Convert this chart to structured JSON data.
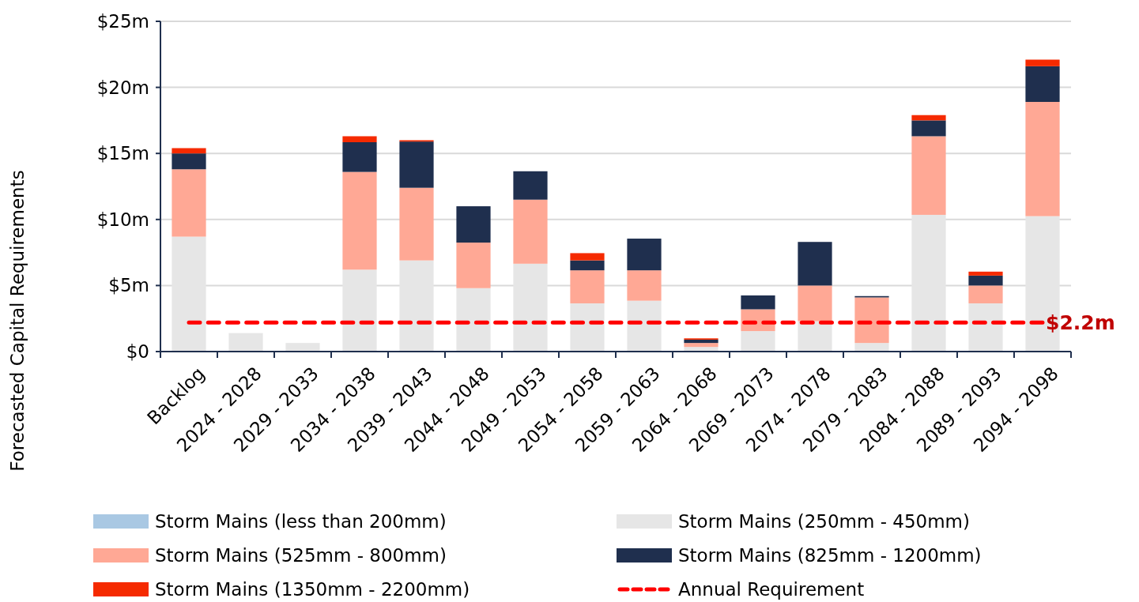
{
  "chart_data": {
    "type": "bar",
    "stacked": true,
    "ylabel": "Forecasted Capital Requirements",
    "categories": [
      "Backlog",
      "2024 - 2028",
      "2029 - 2033",
      "2034 - 2038",
      "2039 - 2043",
      "2044 - 2048",
      "2049 - 2053",
      "2054 - 2058",
      "2059 - 2063",
      "2064 - 2068",
      "2069 - 2073",
      "2074 - 2078",
      "2079 - 2083",
      "2084 - 2088",
      "2089 - 2093",
      "2094 - 2098"
    ],
    "series": [
      {
        "name": "Storm Mains (less than 200mm)",
        "color": "#a9c8e3",
        "values": [
          0,
          0,
          0,
          0,
          0,
          0,
          0,
          0,
          0,
          0,
          0,
          0,
          0,
          0,
          0,
          0
        ]
      },
      {
        "name": "Storm Mains (250mm - 450mm)",
        "color": "#e6e6e6",
        "values": [
          8.7,
          1.4,
          0.65,
          6.2,
          6.9,
          4.8,
          6.65,
          3.65,
          3.85,
          0.35,
          1.55,
          2.3,
          0.65,
          10.35,
          3.65,
          10.25
        ]
      },
      {
        "name": "Storm Mains (525mm - 800mm)",
        "color": "#ffa895",
        "values": [
          5.1,
          0,
          0,
          7.4,
          5.5,
          3.45,
          4.85,
          2.5,
          2.3,
          0.3,
          1.65,
          2.7,
          3.45,
          5.95,
          1.35,
          8.65
        ]
      },
      {
        "name": "Storm Mains (825mm - 1200mm)",
        "color": "#1f2f4e",
        "values": [
          1.2,
          0,
          0,
          2.25,
          3.5,
          2.75,
          2.15,
          0.75,
          2.4,
          0.25,
          1.05,
          3.3,
          0.1,
          1.2,
          0.75,
          2.7
        ]
      },
      {
        "name": "Storm Mains (1350mm - 2200mm)",
        "color": "#f52a00",
        "values": [
          0.4,
          0,
          0,
          0.45,
          0.1,
          0,
          0,
          0.55,
          0,
          0.1,
          0,
          0,
          0,
          0.4,
          0.3,
          0.5
        ]
      },
      {
        "name": "Annual Requirement",
        "type": "line",
        "line_style": "dashed",
        "color": "#ff0000",
        "values": [
          2.2,
          2.2,
          2.2,
          2.2,
          2.2,
          2.2,
          2.2,
          2.2,
          2.2,
          2.2,
          2.2,
          2.2,
          2.2,
          2.2,
          2.2,
          2.2
        ]
      }
    ],
    "annotations": [
      {
        "text": "$2.2m",
        "x": "2094 - 2098",
        "y": 2.2
      }
    ],
    "ylim": [
      0,
      25
    ],
    "yticks": [
      {
        "value": 0,
        "label": "$0"
      },
      {
        "value": 5,
        "label": "$5m"
      },
      {
        "value": 10,
        "label": "$10m"
      },
      {
        "value": 15,
        "label": "$15m"
      },
      {
        "value": 20,
        "label": "$20m"
      },
      {
        "value": 25,
        "label": "$25m"
      }
    ],
    "grid": "y",
    "legend": "bottom"
  }
}
